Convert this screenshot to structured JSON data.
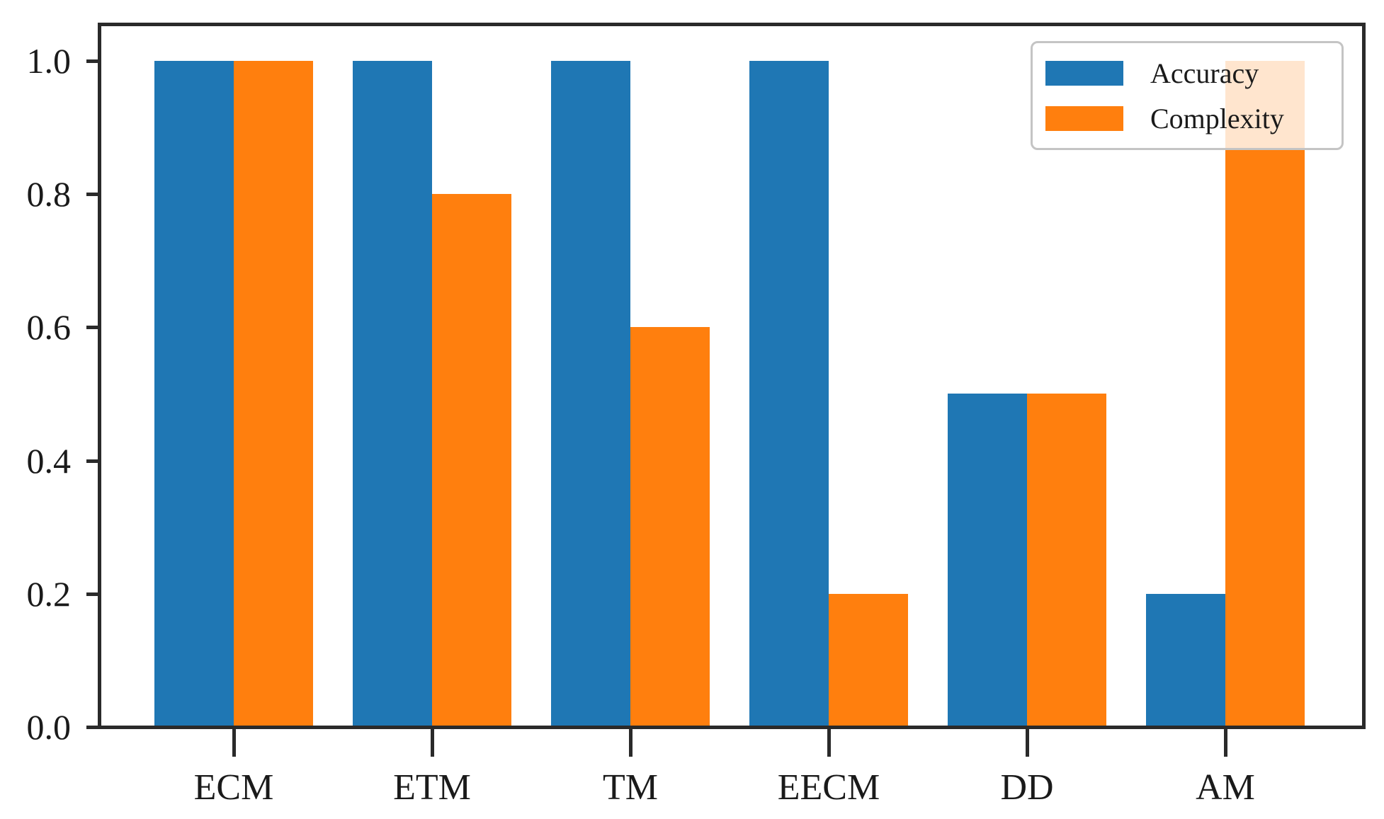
{
  "figure": {
    "background_color": "#ffffff",
    "spine_color": "#2a2a2a",
    "text_color": "#1a1a1a",
    "legend_border_color": "#c4c4c4"
  },
  "chart_data": {
    "type": "bar",
    "title": "",
    "xlabel": "",
    "ylabel": "",
    "categories": [
      "ECM",
      "ETM",
      "TM",
      "EECM",
      "DD",
      "AM"
    ],
    "series": [
      {
        "name": "Accuracy",
        "color": "#1f77b4",
        "values": [
          1.0,
          1.0,
          1.0,
          1.0,
          0.5,
          0.2
        ]
      },
      {
        "name": "Complexity",
        "color": "#ff7f0e",
        "values": [
          1.0,
          0.8,
          0.6,
          0.2,
          0.5,
          1.0
        ]
      }
    ],
    "ylim": [
      0.0,
      1.055
    ],
    "yticks": [
      0.0,
      0.2,
      0.4,
      0.6,
      0.8,
      1.0
    ],
    "ytick_labels": [
      "0.0",
      "0.2",
      "0.4",
      "0.6",
      "0.8",
      "1.0"
    ],
    "bar_width_units": 0.4,
    "grid": false,
    "legend": {
      "position": "upper right",
      "framealpha": 0.8,
      "entries": [
        "Accuracy",
        "Complexity"
      ]
    }
  }
}
